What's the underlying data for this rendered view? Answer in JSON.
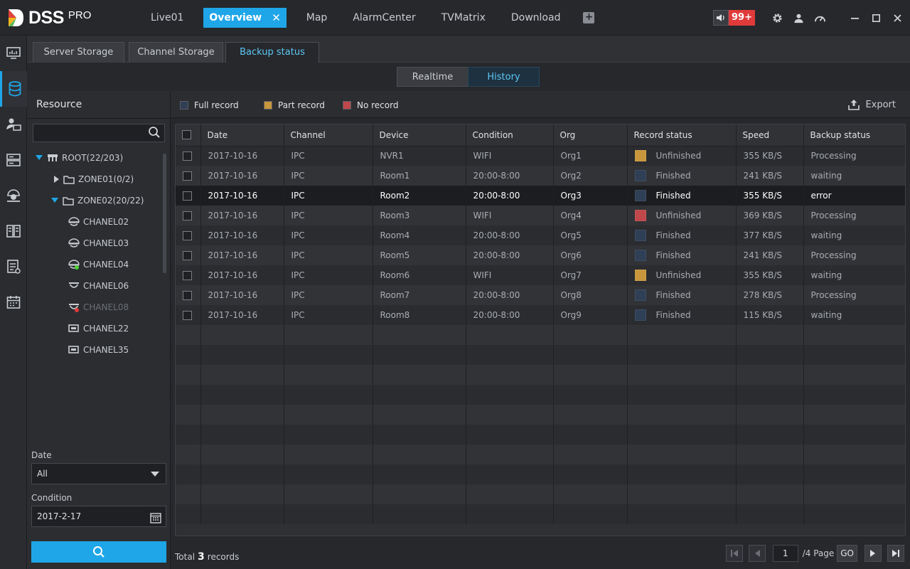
{
  "app": {
    "name": "DSS",
    "edition": "PRO"
  },
  "topnav": [
    {
      "label": "Live01"
    },
    {
      "label": "Overview",
      "active": true
    },
    {
      "label": "Map"
    },
    {
      "label": "AlarmCenter"
    },
    {
      "label": "TVMatrix"
    },
    {
      "label": "Download"
    }
  ],
  "topbar": {
    "close_glyph": "✕",
    "add_glyph": "+",
    "alarm_count": "99+"
  },
  "subtabs": [
    "Server Storage",
    "Channel Storage",
    "Backup status"
  ],
  "modes": [
    "Realtime",
    "History"
  ],
  "resource": {
    "title": "Resource",
    "search_placeholder": "",
    "tree": [
      {
        "label": "ROOT(22/203)",
        "icon": "org-icon"
      },
      {
        "label": "ZONE01(0/2)",
        "icon": "folder-icon"
      },
      {
        "label": "ZONE02(20/22)",
        "icon": "folder-icon"
      },
      {
        "label": "CHANEL02",
        "icon": "dome-camera-icon"
      },
      {
        "label": "CHANEL03",
        "icon": "dome-camera-icon"
      },
      {
        "label": "CHANEL04",
        "icon": "dome-camera-online-icon"
      },
      {
        "label": "CHANEL06",
        "icon": "dome-camera-icon"
      },
      {
        "label": "CHANEL08",
        "icon": "dome-camera-offline-icon"
      },
      {
        "label": "CHANEL22",
        "icon": "box-camera-icon"
      },
      {
        "label": "CHANEL35",
        "icon": "box-camera-icon"
      }
    ]
  },
  "filters": {
    "date_label": "Date",
    "date_value": "All",
    "condition_label": "Condition",
    "condition_value": "2017-2-17"
  },
  "legend": {
    "items": [
      {
        "label": "Full record",
        "color": "#2f3f55"
      },
      {
        "label": "Part record",
        "color": "#c8963c"
      },
      {
        "label": "No record",
        "color": "#c0474a"
      }
    ],
    "export_label": "Export"
  },
  "table": {
    "columns": [
      "Date",
      "Channel",
      "Device",
      "Condition",
      "Org",
      "Record status",
      "Speed",
      "Backup status"
    ],
    "rows": [
      {
        "date": "2017-10-16",
        "channel": "IPC",
        "device": "NVR1",
        "condition": "WIFI",
        "org": "Org1",
        "status_color": "#c8963c",
        "record_status": "Unfinished",
        "speed": "355 KB/S",
        "backup": "Processing"
      },
      {
        "date": "2017-10-16",
        "channel": "IPC",
        "device": "Room1",
        "condition": "20:00-8:00",
        "org": "Org2",
        "status_color": "#2f3f55",
        "record_status": "Finished",
        "speed": "241 KB/S",
        "backup": "waiting"
      },
      {
        "date": "2017-10-16",
        "channel": "IPC",
        "device": "Room2",
        "condition": "20:00-8:00",
        "org": "Org3",
        "status_color": "#2f3f55",
        "record_status": "Finished",
        "speed": "355 KB/S",
        "backup": "error",
        "selected": true
      },
      {
        "date": "2017-10-16",
        "channel": "IPC",
        "device": "Room3",
        "condition": "WIFI",
        "org": "Org4",
        "status_color": "#c0474a",
        "record_status": "Unfinished",
        "speed": "369 KB/S",
        "backup": "Processing"
      },
      {
        "date": "2017-10-16",
        "channel": "IPC",
        "device": "Room4",
        "condition": "20:00-8:00",
        "org": "Org5",
        "status_color": "#2f3f55",
        "record_status": "Finished",
        "speed": "377 KB/S",
        "backup": "waiting"
      },
      {
        "date": "2017-10-16",
        "channel": "IPC",
        "device": "Room5",
        "condition": "20:00-8:00",
        "org": "Org6",
        "status_color": "#2f3f55",
        "record_status": "Finished",
        "speed": "241 KB/S",
        "backup": "Processing"
      },
      {
        "date": "2017-10-16",
        "channel": "IPC",
        "device": "Room6",
        "condition": "WIFI",
        "org": "Org7",
        "status_color": "#c8963c",
        "record_status": "Unfinished",
        "speed": "355 KB/S",
        "backup": "waiting"
      },
      {
        "date": "2017-10-16",
        "channel": "IPC",
        "device": "Room7",
        "condition": "20:00-8:00",
        "org": "Org8",
        "status_color": "#2f3f55",
        "record_status": "Finished",
        "speed": "278 KB/S",
        "backup": "Processing"
      },
      {
        "date": "2017-10-16",
        "channel": "IPC",
        "device": "Room8",
        "condition": "20:00-8:00",
        "org": "Org9",
        "status_color": "#2f3f55",
        "record_status": "Finished",
        "speed": "115 KB/S",
        "backup": "waiting"
      }
    ]
  },
  "footer": {
    "total_prefix": "Total",
    "total_count": "3",
    "total_suffix": "records",
    "page": "1",
    "page_total": "/4 Page",
    "go_label": "GO"
  },
  "colors": {
    "accent": "#1fa6e8",
    "alarm": "#e03a3a"
  }
}
